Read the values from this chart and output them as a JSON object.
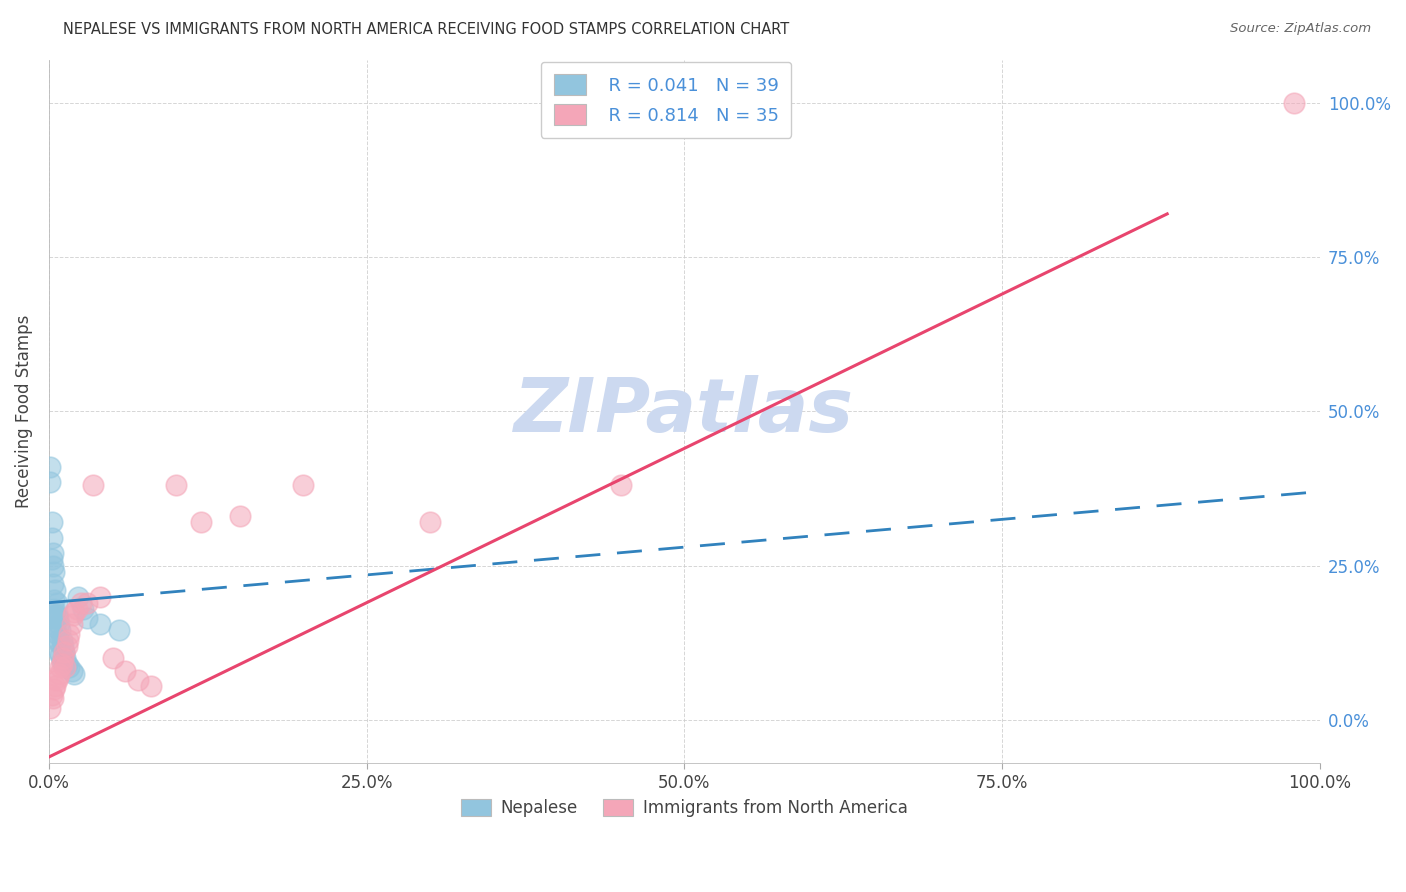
{
  "title": "NEPALESE VS IMMIGRANTS FROM NORTH AMERICA RECEIVING FOOD STAMPS CORRELATION CHART",
  "source": "Source: ZipAtlas.com",
  "ylabel": "Receiving Food Stamps",
  "blue_label": "Nepalese",
  "pink_label": "Immigrants from North America",
  "blue_R": "0.041",
  "blue_N": "39",
  "pink_R": "0.814",
  "pink_N": "35",
  "blue_scatter_color": "#92c5de",
  "pink_scatter_color": "#f4a6b8",
  "blue_line_color": "#3182bd",
  "pink_line_color": "#e8456e",
  "axis_tick_color": "#4a90d9",
  "text_color": "#444444",
  "watermark_color": "#ccd9f0",
  "background_color": "#ffffff",
  "grid_color": "#cccccc",
  "blue_x": [
    0.001,
    0.001,
    0.002,
    0.002,
    0.002,
    0.003,
    0.003,
    0.003,
    0.004,
    0.004,
    0.004,
    0.004,
    0.005,
    0.005,
    0.005,
    0.006,
    0.006,
    0.006,
    0.007,
    0.007,
    0.008,
    0.008,
    0.008,
    0.009,
    0.009,
    0.01,
    0.01,
    0.011,
    0.012,
    0.013,
    0.014,
    0.016,
    0.018,
    0.02,
    0.023,
    0.027,
    0.03,
    0.04,
    0.055
  ],
  "blue_y": [
    0.385,
    0.41,
    0.295,
    0.32,
    0.26,
    0.27,
    0.25,
    0.22,
    0.24,
    0.195,
    0.18,
    0.165,
    0.21,
    0.17,
    0.15,
    0.19,
    0.17,
    0.14,
    0.165,
    0.13,
    0.155,
    0.125,
    0.11,
    0.145,
    0.105,
    0.13,
    0.095,
    0.12,
    0.11,
    0.1,
    0.09,
    0.085,
    0.08,
    0.075,
    0.2,
    0.18,
    0.165,
    0.155,
    0.145
  ],
  "pink_x": [
    0.001,
    0.002,
    0.003,
    0.004,
    0.005,
    0.006,
    0.007,
    0.008,
    0.009,
    0.01,
    0.011,
    0.012,
    0.013,
    0.014,
    0.015,
    0.016,
    0.018,
    0.019,
    0.02,
    0.022,
    0.025,
    0.03,
    0.035,
    0.04,
    0.05,
    0.06,
    0.07,
    0.08,
    0.1,
    0.12,
    0.15,
    0.2,
    0.3,
    0.45,
    0.98
  ],
  "pink_y": [
    0.02,
    0.04,
    0.035,
    0.05,
    0.055,
    0.065,
    0.07,
    0.075,
    0.085,
    0.09,
    0.1,
    0.11,
    0.085,
    0.12,
    0.13,
    0.14,
    0.155,
    0.17,
    0.175,
    0.18,
    0.19,
    0.19,
    0.38,
    0.2,
    0.1,
    0.08,
    0.065,
    0.055,
    0.38,
    0.32,
    0.33,
    0.38,
    0.32,
    0.38,
    1.0
  ],
  "blue_line_x0": 0.0,
  "blue_line_y0": 0.19,
  "blue_line_x1": 1.0,
  "blue_line_y1": 0.37,
  "blue_line_solid_end": 0.055,
  "pink_line_x0": 0.0,
  "pink_line_y0": -0.06,
  "pink_line_x1": 0.88,
  "pink_line_y1": 0.82,
  "xlim": [
    0.0,
    1.0
  ],
  "ylim": [
    -0.07,
    1.07
  ],
  "xticks": [
    0.0,
    0.25,
    0.5,
    0.75,
    1.0
  ],
  "yticks": [
    0.0,
    0.25,
    0.5,
    0.75,
    1.0
  ],
  "xtick_labels": [
    "0.0%",
    "25.0%",
    "50.0%",
    "75.0%",
    "100.0%"
  ],
  "right_ytick_labels": [
    "0.0%",
    "25.0%",
    "50.0%",
    "75.0%",
    "100.0%"
  ]
}
